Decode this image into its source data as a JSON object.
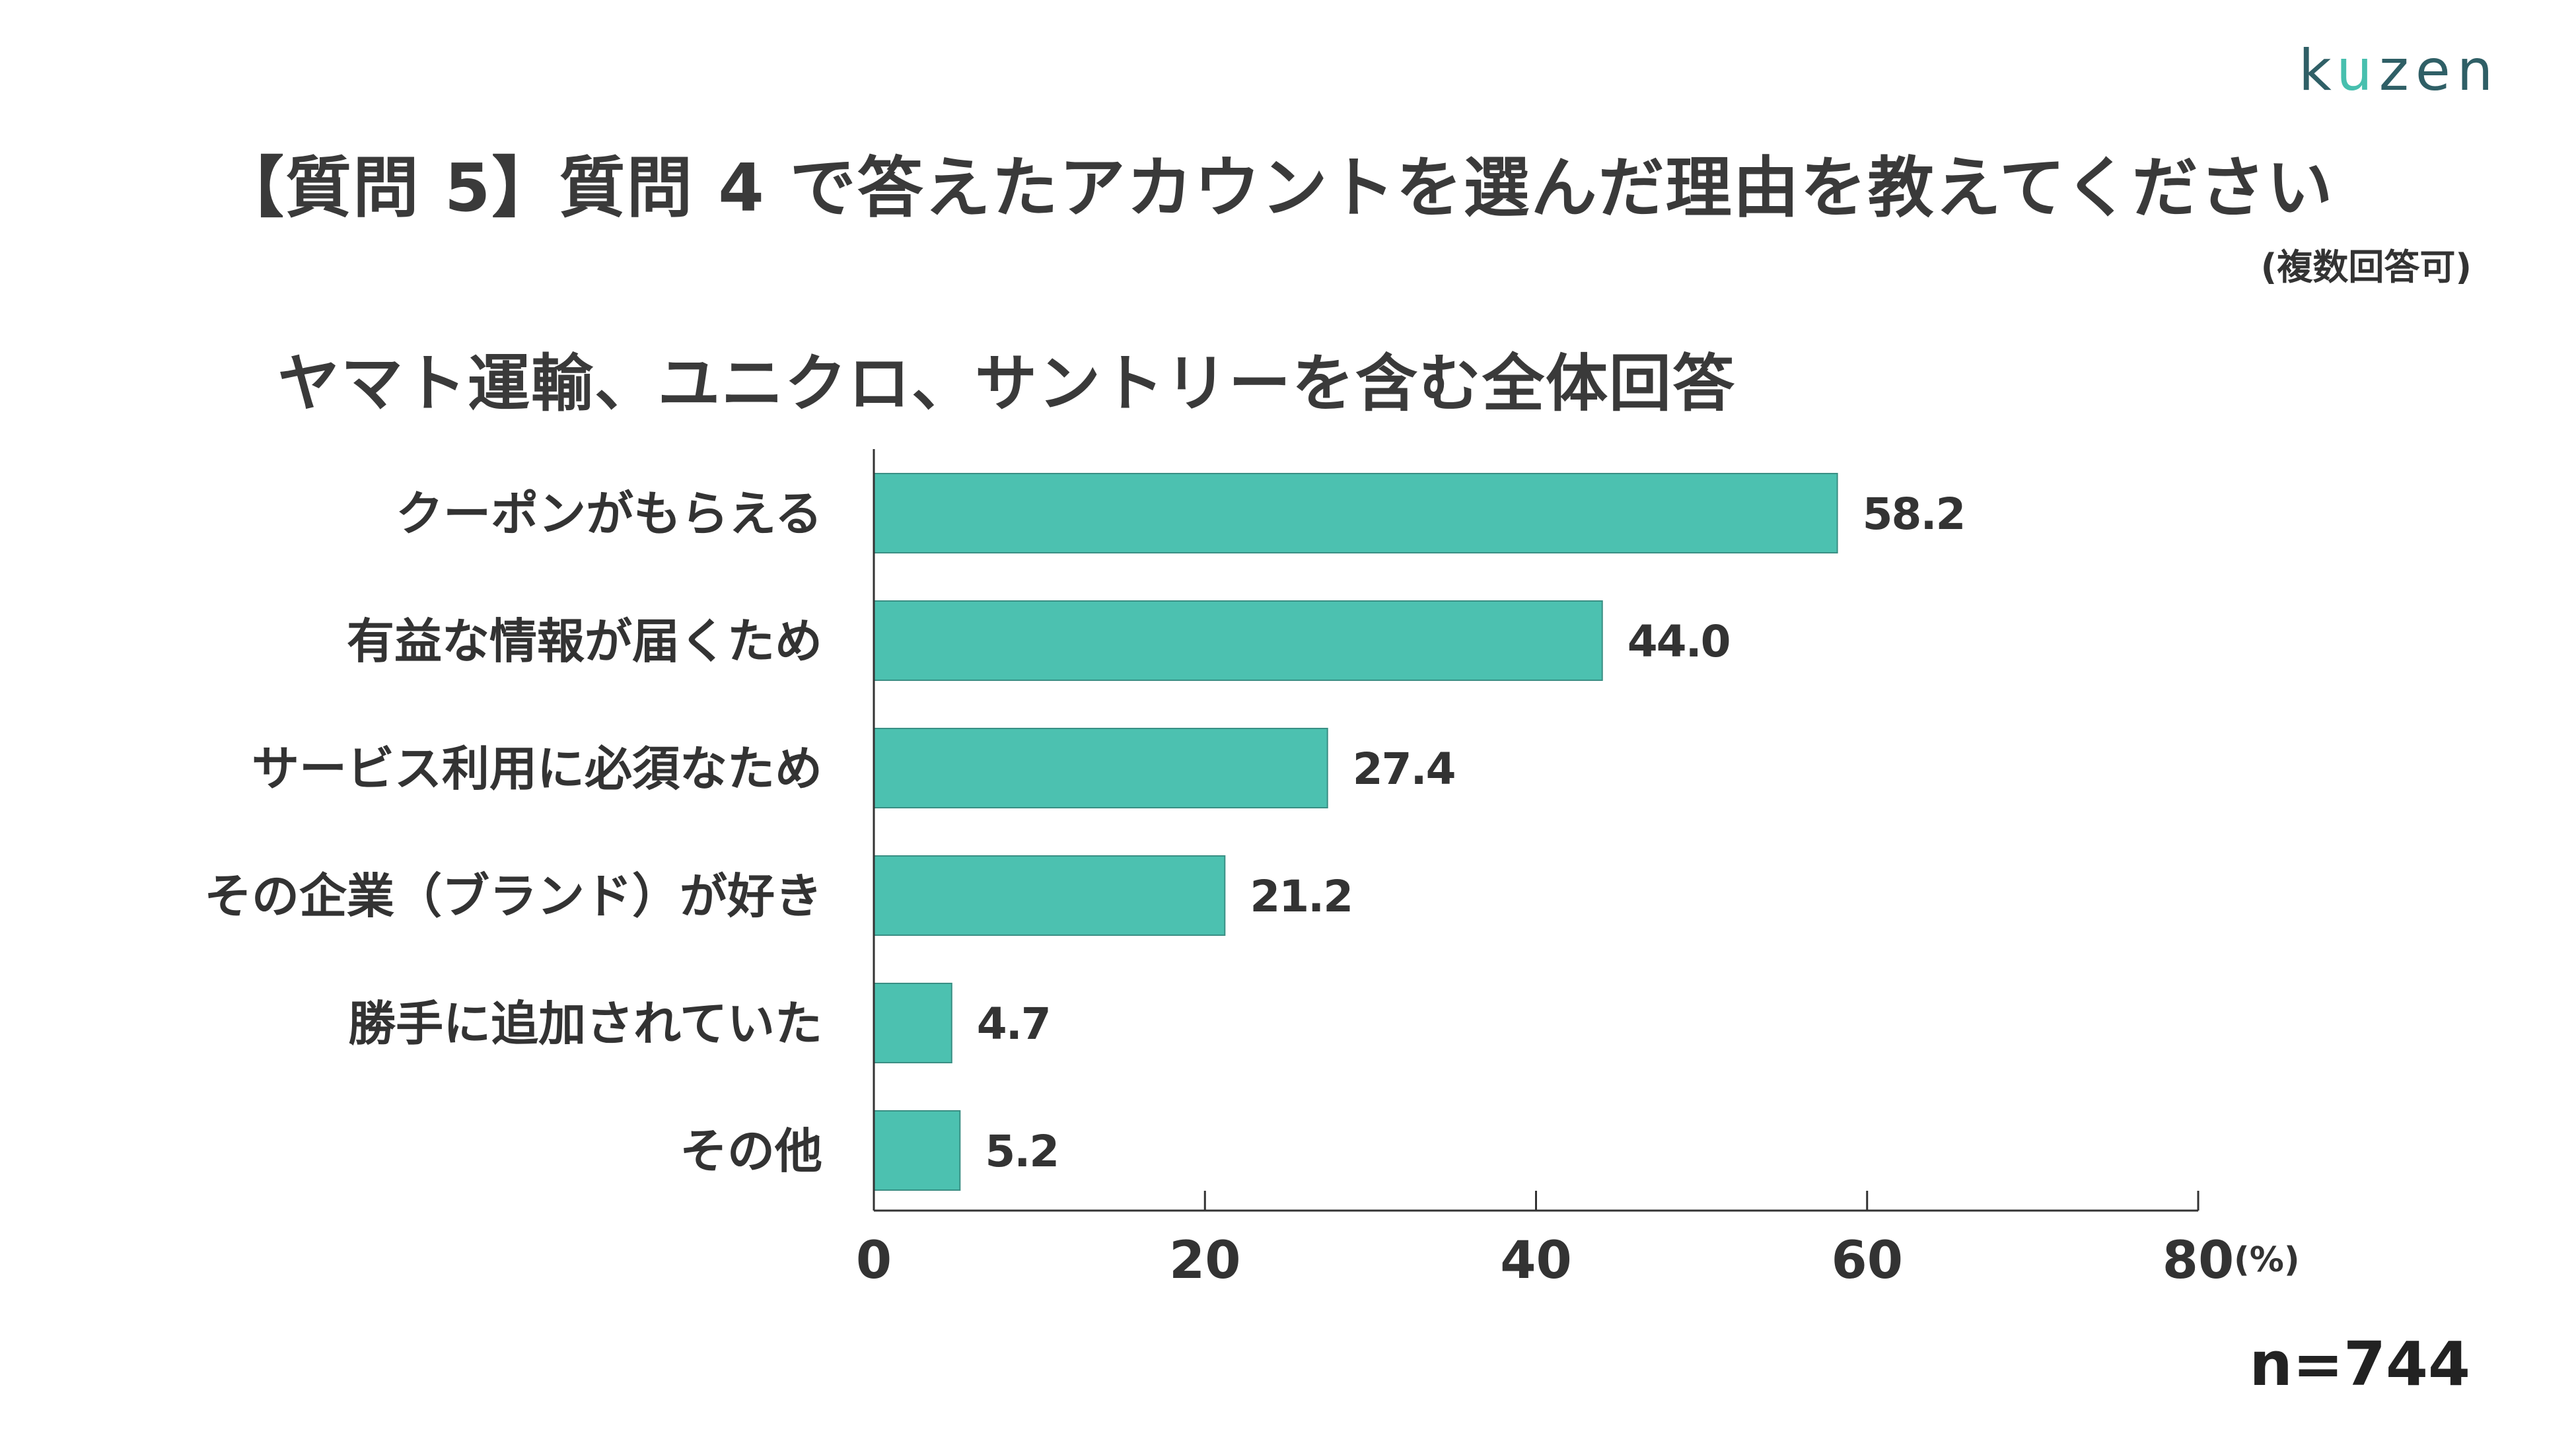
{
  "logo": {
    "prefix": "k",
    "accent": "u",
    "suffix": "zen"
  },
  "title": "【質問 5】質問 4 で答えたアカウントを選んだ理由を教えてください",
  "subnote": "(複数回答可)",
  "n_label": "n=744",
  "colors": {
    "bar": "#4cc1b0",
    "bar_stroke": "#3a8f84",
    "axis": "#333333",
    "logo_dark": "#2f5f66",
    "logo_accent": "#47bfae"
  },
  "chart_data": {
    "type": "bar",
    "orientation": "horizontal",
    "title": "ヤマト運輸、ユニクロ、サントリーを含む全体回答",
    "categories": [
      "クーポンがもらえる",
      "有益な情報が届くため",
      "サービス利用に必須なため",
      "その企業（ブランド）が好き",
      "勝手に追加されていた",
      "その他"
    ],
    "values": [
      58.2,
      44.0,
      27.4,
      21.2,
      4.7,
      5.2
    ],
    "value_labels": [
      "58.2",
      "44.0",
      "27.4",
      "21.2",
      "4.7",
      "5.2"
    ],
    "xlim": [
      0,
      80
    ],
    "x_ticks": [
      "0",
      "20",
      "40",
      "60",
      "80"
    ],
    "x_unit": "(%)",
    "grid": false,
    "legend": "none"
  }
}
